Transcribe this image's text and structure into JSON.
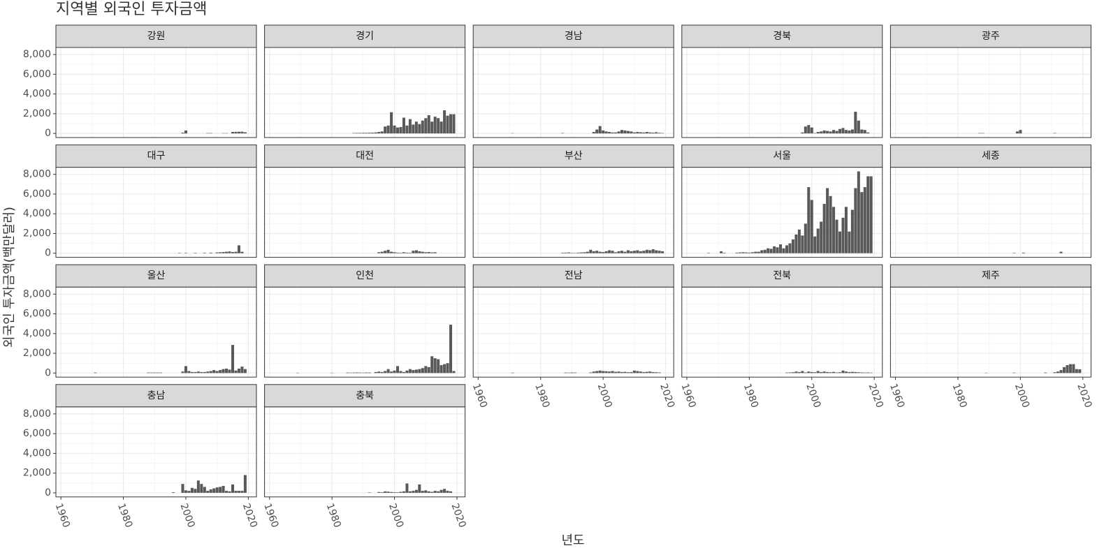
{
  "chart_data": {
    "type": "bar",
    "title": "지역별 외국인 투자금액",
    "x_label": "년도",
    "y_label": "외국인 투자금액(백만달러)",
    "color": "#595959",
    "xlim": [
      1958.4,
      2022.6
    ],
    "ylim": [
      -415,
      8715
    ],
    "xticks": [
      1960,
      1980,
      2000,
      2020
    ],
    "x_minor_ticks": [
      1970,
      1990,
      2010
    ],
    "yticks": [
      0,
      {
        "value": 2000,
        "label": "2,000"
      },
      {
        "value": 4000,
        "label": "4,000"
      },
      {
        "value": 6000,
        "label": "6,000"
      },
      {
        "value": 8000,
        "label": "8,000"
      }
    ],
    "y_minor_ticks": [
      1000,
      3000,
      5000,
      7000
    ],
    "grid": true,
    "facets": [
      {
        "name": "강원",
        "x": [
          1999,
          2000,
          2007,
          2008,
          2012,
          2013,
          2015,
          2016,
          2017,
          2018,
          2019
        ],
        "values": [
          80,
          300,
          40,
          40,
          30,
          30,
          150,
          160,
          170,
          180,
          120
        ]
      },
      {
        "name": "경기",
        "x": [
          1987,
          1988,
          1989,
          1990,
          1991,
          1992,
          1993,
          1994,
          1995,
          1996,
          1997,
          1998,
          1999,
          2000,
          2001,
          2002,
          2003,
          2004,
          2005,
          2006,
          2007,
          2008,
          2009,
          2010,
          2011,
          2012,
          2013,
          2014,
          2015,
          2016,
          2017,
          2018,
          2019
        ],
        "values": [
          40,
          50,
          50,
          60,
          60,
          70,
          80,
          100,
          150,
          200,
          700,
          800,
          2150,
          800,
          600,
          650,
          1600,
          800,
          1450,
          900,
          1200,
          950,
          1300,
          1550,
          1850,
          1200,
          1700,
          1550,
          1200,
          2350,
          1800,
          1950,
          1950
        ]
      },
      {
        "name": "경남",
        "x": [
          1971,
          1987,
          1997,
          1998,
          1999,
          2000,
          2001,
          2002,
          2003,
          2004,
          2005,
          2006,
          2007,
          2008,
          2009,
          2010,
          2011,
          2012,
          2013,
          2014,
          2015,
          2016,
          2017,
          2018,
          2019
        ],
        "values": [
          30,
          40,
          150,
          400,
          750,
          300,
          200,
          150,
          100,
          100,
          200,
          350,
          300,
          250,
          200,
          100,
          150,
          120,
          100,
          150,
          100,
          80,
          120,
          60,
          40
        ]
      },
      {
        "name": "경북",
        "x": [
          1997,
          1998,
          1999,
          2000,
          2001,
          2002,
          2003,
          2004,
          2005,
          2006,
          2007,
          2008,
          2009,
          2010,
          2011,
          2012,
          2013,
          2014,
          2015,
          2016,
          2017,
          2018
        ],
        "values": [
          100,
          700,
          850,
          600,
          40,
          150,
          200,
          300,
          250,
          200,
          350,
          250,
          450,
          550,
          350,
          300,
          400,
          2200,
          1300,
          400,
          350,
          100
        ]
      },
      {
        "name": "광주",
        "x": [
          1987,
          1988,
          1999,
          2000,
          2011
        ],
        "values": [
          40,
          40,
          200,
          350,
          40
        ]
      },
      {
        "name": "대구",
        "x": [
          1998,
          2000,
          2003,
          2006,
          2008,
          2010,
          2011,
          2012,
          2013,
          2014,
          2015,
          2016,
          2017,
          2018
        ],
        "values": [
          40,
          40,
          40,
          50,
          60,
          80,
          100,
          120,
          150,
          180,
          120,
          150,
          800,
          150
        ]
      },
      {
        "name": "대전",
        "x": [
          1995,
          1996,
          1997,
          1998,
          1999,
          2000,
          2001,
          2002,
          2003,
          2004,
          2005,
          2006,
          2007,
          2008,
          2009,
          2010,
          2011,
          2012,
          2013
        ],
        "values": [
          100,
          150,
          250,
          350,
          150,
          100,
          60,
          50,
          100,
          60,
          50,
          250,
          300,
          200,
          150,
          100,
          120,
          80,
          100
        ]
      },
      {
        "name": "부산",
        "x": [
          1987,
          1988,
          1989,
          1990,
          1991,
          1992,
          1993,
          1994,
          1995,
          1996,
          1997,
          1998,
          1999,
          2000,
          2001,
          2002,
          2003,
          2004,
          2005,
          2006,
          2007,
          2008,
          2009,
          2010,
          2011,
          2012,
          2013,
          2014,
          2015,
          2016,
          2017,
          2018,
          2019
        ],
        "values": [
          50,
          60,
          80,
          40,
          30,
          60,
          80,
          100,
          150,
          350,
          200,
          250,
          150,
          120,
          200,
          300,
          250,
          100,
          200,
          250,
          150,
          300,
          200,
          250,
          300,
          200,
          250,
          350,
          300,
          400,
          300,
          250,
          200
        ]
      },
      {
        "name": "서울",
        "x": [
          1967,
          1971,
          1972,
          1976,
          1977,
          1978,
          1979,
          1980,
          1981,
          1982,
          1983,
          1984,
          1985,
          1986,
          1987,
          1988,
          1989,
          1990,
          1991,
          1992,
          1993,
          1994,
          1995,
          1996,
          1997,
          1998,
          1999,
          2000,
          2001,
          2002,
          2003,
          2004,
          2005,
          2006,
          2007,
          2008,
          2009,
          2010,
          2011,
          2012,
          2013,
          2014,
          2015,
          2016,
          2017,
          2018,
          2019
        ],
        "values": [
          40,
          200,
          50,
          60,
          80,
          100,
          80,
          60,
          100,
          150,
          150,
          300,
          350,
          500,
          450,
          700,
          600,
          900,
          500,
          800,
          1000,
          1400,
          1900,
          2400,
          1800,
          3000,
          6700,
          5400,
          1700,
          2500,
          3200,
          5000,
          6600,
          5800,
          4700,
          3400,
          2200,
          3600,
          4700,
          2200,
          4400,
          6600,
          8300,
          6200,
          6700,
          7800,
          7800
        ]
      },
      {
        "name": "세종",
        "x": [
          1998,
          2001,
          2013
        ],
        "values": [
          40,
          60,
          150
        ]
      },
      {
        "name": "울산",
        "x": [
          1971,
          1988,
          1989,
          1990,
          1991,
          1992,
          1999,
          2000,
          2001,
          2002,
          2003,
          2004,
          2005,
          2006,
          2007,
          2008,
          2009,
          2010,
          2011,
          2012,
          2013,
          2014,
          2015,
          2016,
          2017,
          2018,
          2019
        ],
        "values": [
          50,
          50,
          50,
          50,
          50,
          50,
          150,
          700,
          200,
          100,
          100,
          150,
          100,
          100,
          150,
          200,
          300,
          200,
          300,
          400,
          450,
          350,
          2850,
          250,
          450,
          650,
          400
        ]
      },
      {
        "name": "인천",
        "x": [
          1969,
          1980,
          1985,
          1986,
          1987,
          1988,
          1989,
          1990,
          1991,
          1992,
          1994,
          1995,
          1996,
          1997,
          1998,
          1999,
          2000,
          2001,
          2002,
          2003,
          2004,
          2005,
          2006,
          2007,
          2008,
          2009,
          2010,
          2011,
          2012,
          2013,
          2014,
          2015,
          2016,
          2017,
          2018,
          2019
        ],
        "values": [
          30,
          30,
          50,
          40,
          50,
          60,
          50,
          40,
          60,
          50,
          100,
          150,
          100,
          200,
          400,
          150,
          250,
          700,
          200,
          100,
          250,
          400,
          300,
          350,
          400,
          500,
          700,
          600,
          1700,
          1500,
          1400,
          800,
          900,
          1000,
          4900,
          200
        ]
      },
      {
        "name": "전남",
        "x": [
          1971,
          1988,
          1989,
          1990,
          1991,
          1996,
          1997,
          1998,
          1999,
          2000,
          2001,
          2002,
          2003,
          2004,
          2005,
          2006,
          2007,
          2008,
          2009,
          2010,
          2011,
          2012,
          2013,
          2014,
          2015,
          2016,
          2017,
          2018
        ],
        "values": [
          40,
          50,
          40,
          60,
          50,
          60,
          150,
          200,
          250,
          200,
          180,
          150,
          200,
          120,
          150,
          100,
          120,
          80,
          100,
          250,
          200,
          150,
          100,
          120,
          150,
          100,
          80,
          60
        ]
      },
      {
        "name": "전북",
        "x": [
          1992,
          1993,
          1994,
          1995,
          1996,
          1997,
          1998,
          1999,
          2000,
          2001,
          2002,
          2003,
          2004,
          2005,
          2006,
          2007,
          2008,
          2009,
          2010,
          2011,
          2012,
          2013,
          2014,
          2015,
          2016,
          2017,
          2018,
          2019
        ],
        "values": [
          50,
          60,
          80,
          150,
          100,
          200,
          60,
          150,
          100,
          80,
          200,
          100,
          150,
          100,
          80,
          120,
          60,
          80,
          250,
          150,
          100,
          120,
          100,
          80,
          60,
          50,
          60,
          40
        ]
      },
      {
        "name": "제주",
        "x": [
          1989,
          1998,
          2008,
          2011,
          2012,
          2013,
          2014,
          2015,
          2016,
          2017,
          2018,
          2019
        ],
        "values": [
          30,
          40,
          50,
          80,
          150,
          300,
          600,
          800,
          900,
          900,
          400,
          380
        ]
      },
      {
        "name": "충남",
        "x": [
          1996,
          1999,
          2000,
          2001,
          2002,
          2003,
          2004,
          2005,
          2006,
          2007,
          2008,
          2009,
          2010,
          2011,
          2012,
          2013,
          2014,
          2015,
          2016,
          2017,
          2018,
          2019
        ],
        "values": [
          60,
          900,
          250,
          200,
          500,
          400,
          1250,
          900,
          600,
          200,
          350,
          450,
          550,
          600,
          700,
          200,
          150,
          850,
          200,
          200,
          200,
          1800
        ]
      },
      {
        "name": "충북",
        "x": [
          1992,
          1995,
          1996,
          1997,
          1998,
          1999,
          2000,
          2001,
          2002,
          2003,
          2004,
          2005,
          2006,
          2007,
          2008,
          2009,
          2010,
          2011,
          2012,
          2013,
          2014,
          2015,
          2016,
          2017,
          2018
        ],
        "values": [
          40,
          80,
          60,
          150,
          120,
          80,
          60,
          50,
          100,
          150,
          950,
          150,
          200,
          300,
          850,
          200,
          250,
          150,
          100,
          200,
          150,
          300,
          400,
          200,
          150
        ]
      }
    ]
  }
}
